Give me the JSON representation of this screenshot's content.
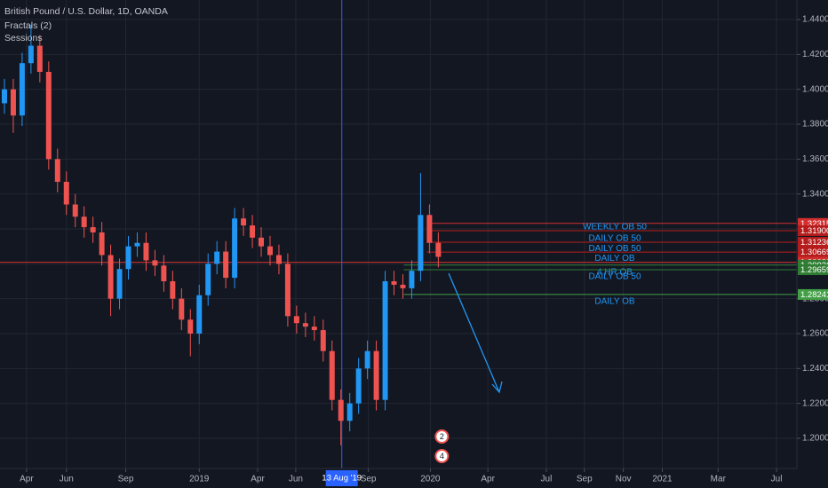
{
  "chart_data": {
    "type": "candlestick",
    "title": "British Pound / U.S. Dollar, 1D, OANDA",
    "indicators": [
      "Fractals (2)",
      "Sessions"
    ],
    "up_color": "#2196f3",
    "down_color": "#ef5350",
    "grid": true,
    "open": [
      1.392,
      1.4,
      1.385,
      1.415,
      1.425,
      1.41,
      1.36,
      1.347,
      1.334,
      1.327,
      1.321,
      1.318,
      1.305,
      1.28,
      1.297,
      1.31,
      1.312,
      1.302,
      1.299,
      1.29,
      1.28,
      1.268,
      1.26,
      1.282,
      1.3,
      1.307,
      1.292,
      1.326,
      1.322,
      1.315,
      1.31,
      1.305,
      1.3,
      1.27,
      1.266,
      1.264,
      1.262,
      1.25,
      1.222,
      1.21,
      1.22,
      1.24,
      1.25,
      1.222,
      1.29,
      1.288,
      1.286,
      1.296,
      1.328,
      1.312
    ],
    "high": [
      1.406,
      1.406,
      1.421,
      1.437,
      1.431,
      1.416,
      1.366,
      1.353,
      1.34,
      1.333,
      1.327,
      1.324,
      1.311,
      1.303,
      1.316,
      1.318,
      1.318,
      1.308,
      1.305,
      1.296,
      1.286,
      1.274,
      1.288,
      1.306,
      1.313,
      1.313,
      1.332,
      1.332,
      1.328,
      1.321,
      1.316,
      1.311,
      1.306,
      1.276,
      1.272,
      1.27,
      1.268,
      1.256,
      1.228,
      1.226,
      1.246,
      1.256,
      1.256,
      1.296,
      1.296,
      1.294,
      1.302,
      1.352,
      1.334,
      1.318
    ],
    "low": [
      1.386,
      1.375,
      1.379,
      1.409,
      1.404,
      1.354,
      1.341,
      1.328,
      1.321,
      1.315,
      1.312,
      1.299,
      1.27,
      1.274,
      1.291,
      1.304,
      1.296,
      1.293,
      1.284,
      1.274,
      1.262,
      1.247,
      1.254,
      1.276,
      1.294,
      1.286,
      1.286,
      1.316,
      1.309,
      1.304,
      1.299,
      1.294,
      1.264,
      1.26,
      1.258,
      1.256,
      1.244,
      1.216,
      1.196,
      1.204,
      1.214,
      1.234,
      1.216,
      1.216,
      1.282,
      1.28,
      1.28,
      1.29,
      1.306,
      1.298
    ],
    "close": [
      1.4,
      1.385,
      1.415,
      1.425,
      1.41,
      1.36,
      1.347,
      1.334,
      1.327,
      1.321,
      1.318,
      1.305,
      1.28,
      1.297,
      1.31,
      1.312,
      1.302,
      1.299,
      1.29,
      1.28,
      1.268,
      1.26,
      1.282,
      1.3,
      1.307,
      1.292,
      1.326,
      1.322,
      1.315,
      1.31,
      1.305,
      1.3,
      1.27,
      1.266,
      1.264,
      1.262,
      1.25,
      1.222,
      1.21,
      1.22,
      1.24,
      1.25,
      1.222,
      1.29,
      1.288,
      1.286,
      1.296,
      1.328,
      1.312,
      1.304
    ],
    "xlim": [
      0,
      90
    ],
    "xticks": [
      {
        "value": 3.0,
        "label": "Apr"
      },
      {
        "value": 7.5,
        "label": "Jun"
      },
      {
        "value": 14.2,
        "label": "Sep"
      },
      {
        "value": 22.5,
        "label": "2019"
      },
      {
        "value": 29.1,
        "label": "Apr"
      },
      {
        "value": 33.4,
        "label": "Jun"
      },
      {
        "value": 41.6,
        "label": "Sep"
      },
      {
        "value": 48.6,
        "label": "2020"
      },
      {
        "value": 55.1,
        "label": "Apr"
      },
      {
        "value": 61.7,
        "label": "Jul"
      },
      {
        "value": 66.0,
        "label": "Sep"
      },
      {
        "value": 70.4,
        "label": "Nov"
      },
      {
        "value": 74.8,
        "label": "2021"
      },
      {
        "value": 81.1,
        "label": "Mar"
      },
      {
        "value": 87.7,
        "label": "Jul"
      }
    ],
    "ylim": [
      1.1827,
      1.4512
    ],
    "yticks": [
      {
        "value": 1.2,
        "label": "1.20000"
      },
      {
        "value": 1.22,
        "label": "1.22000"
      },
      {
        "value": 1.24,
        "label": "1.24000"
      },
      {
        "value": 1.26,
        "label": "1.26000"
      },
      {
        "value": 1.28,
        "label": "1.28000"
      },
      {
        "value": 1.3,
        "label": "1.30000"
      },
      {
        "value": 1.32,
        "label": "1.32000"
      },
      {
        "value": 1.34,
        "label": "1.34000"
      },
      {
        "value": 1.36,
        "label": "1.36000"
      },
      {
        "value": 1.38,
        "label": "1.38000"
      },
      {
        "value": 1.4,
        "label": "1.40000"
      },
      {
        "value": 1.42,
        "label": "1.42000"
      },
      {
        "value": 1.44,
        "label": "1.44000"
      }
    ],
    "levels": [
      {
        "price": 1.32315,
        "color": "#d32f2f",
        "start": 48.2
      },
      {
        "price": 1.319,
        "price_label": "1.31900",
        "color": "#b71c1c",
        "start": 48.2,
        "text": "WEEKLY OB 50",
        "text_side": "above"
      },
      {
        "price": 1.31236,
        "color": "#b71c1c",
        "start": 48.2,
        "text": "DAILY OB 50",
        "text_side": "above"
      },
      {
        "price": 1.30669,
        "color": "#b71c1c",
        "start": 48.2,
        "text": "DAILY OB 50",
        "text_side": "above"
      },
      {
        "price": 1.30089,
        "color": "#d32f2f",
        "start": 0,
        "text": "DAILY OB",
        "text_side": "above"
      },
      {
        "price": 1.29926,
        "color": "#2e7d32",
        "start": 45.6,
        "text": "4 HR OB",
        "text_side": "below"
      },
      {
        "price": 1.29659,
        "color": "#2e7d32",
        "start": 45.6,
        "text": "DAILY OB 50",
        "text_side": "below"
      },
      {
        "price": 1.28241,
        "color": "#43a047",
        "start": 45.6,
        "text": "DAILY OB",
        "text_side": "below"
      }
    ],
    "crosshair": {
      "x": 38.6,
      "label": "13 Aug '19"
    },
    "events": [
      {
        "x": 49.9,
        "label": "2"
      },
      {
        "x": 49.9,
        "label": "4"
      }
    ]
  }
}
